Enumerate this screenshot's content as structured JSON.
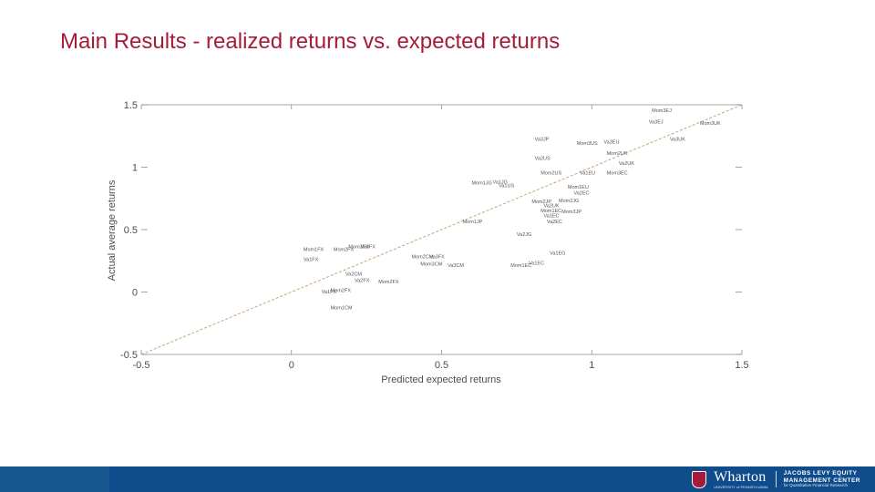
{
  "slide": {
    "title": "Main Results - realized returns vs. expected returns"
  },
  "chart_data": {
    "type": "scatter",
    "title": "",
    "xlabel": "Predicted expected returns",
    "ylabel": "Actual average returns",
    "xlim": [
      -0.5,
      1.5
    ],
    "ylim": [
      -0.5,
      1.5
    ],
    "xticks": [
      -0.5,
      0,
      0.5,
      1,
      1.5
    ],
    "xtick_labels": [
      "-0.5",
      "0",
      "0.5",
      "1",
      "1.5"
    ],
    "yticks": [
      -0.5,
      0,
      0.5,
      1,
      1.5
    ],
    "ytick_labels": [
      "-0.5",
      "0",
      "0.5",
      "1",
      "1.5"
    ],
    "reference_line": {
      "type": "45-degree",
      "style": "dashed",
      "color": "#c8a27c"
    },
    "points": [
      {
        "label": "Mom3EJ",
        "x": 1.2,
        "y": 1.44
      },
      {
        "label": "Va3EJ",
        "x": 1.19,
        "y": 1.35
      },
      {
        "label": "Mom3UK",
        "x": 1.36,
        "y": 1.34
      },
      {
        "label": "Va3JP",
        "x": 0.81,
        "y": 1.21
      },
      {
        "label": "Mom3US",
        "x": 0.95,
        "y": 1.18
      },
      {
        "label": "Va3EU",
        "x": 1.04,
        "y": 1.19
      },
      {
        "label": "Va3UK",
        "x": 1.26,
        "y": 1.21
      },
      {
        "label": "Mom2UK",
        "x": 1.05,
        "y": 1.1
      },
      {
        "label": "Va2US",
        "x": 0.81,
        "y": 1.06
      },
      {
        "label": "Va2UK",
        "x": 1.09,
        "y": 1.02
      },
      {
        "label": "Mom2US",
        "x": 0.83,
        "y": 0.94
      },
      {
        "label": "Va1EU",
        "x": 0.96,
        "y": 0.94
      },
      {
        "label": "Mom3EC",
        "x": 1.05,
        "y": 0.94
      },
      {
        "label": "Mom1JG",
        "x": 0.6,
        "y": 0.86
      },
      {
        "label": "Va1JG",
        "x": 0.67,
        "y": 0.87
      },
      {
        "label": "Va1US",
        "x": 0.69,
        "y": 0.84
      },
      {
        "label": "Mom1EU",
        "x": 0.92,
        "y": 0.83
      },
      {
        "label": "Va2EC",
        "x": 0.94,
        "y": 0.78
      },
      {
        "label": "Mom2JG",
        "x": 0.89,
        "y": 0.72
      },
      {
        "label": "Mom2JP",
        "x": 0.8,
        "y": 0.71
      },
      {
        "label": "Va2UK",
        "x": 0.84,
        "y": 0.68
      },
      {
        "label": "Mom1EC",
        "x": 0.83,
        "y": 0.64
      },
      {
        "label": "Mom3JP",
        "x": 0.9,
        "y": 0.63
      },
      {
        "label": "Va1EC",
        "x": 0.84,
        "y": 0.6
      },
      {
        "label": "Mom1JP",
        "x": 0.57,
        "y": 0.55
      },
      {
        "label": "Va2EC",
        "x": 0.85,
        "y": 0.55
      },
      {
        "label": "Va2JG",
        "x": 0.75,
        "y": 0.45
      },
      {
        "label": "Mom1FX",
        "x": 0.04,
        "y": 0.33
      },
      {
        "label": "Va1FX",
        "x": 0.04,
        "y": 0.25
      },
      {
        "label": "Mom2FX",
        "x": 0.14,
        "y": 0.33
      },
      {
        "label": "Mom3FX",
        "x": 0.19,
        "y": 0.35
      },
      {
        "label": "Va3FX",
        "x": 0.23,
        "y": 0.35
      },
      {
        "label": "Mom2CM",
        "x": 0.4,
        "y": 0.27
      },
      {
        "label": "Va3FX",
        "x": 0.46,
        "y": 0.27
      },
      {
        "label": "Mom3CM",
        "x": 0.43,
        "y": 0.21
      },
      {
        "label": "Va3CM",
        "x": 0.52,
        "y": 0.2
      },
      {
        "label": "Mom1EC",
        "x": 0.73,
        "y": 0.2
      },
      {
        "label": "Va1EC",
        "x": 0.79,
        "y": 0.22
      },
      {
        "label": "Va1EG",
        "x": 0.86,
        "y": 0.3
      },
      {
        "label": "Va2CM",
        "x": 0.18,
        "y": 0.13
      },
      {
        "label": "Va2FX",
        "x": 0.21,
        "y": 0.08
      },
      {
        "label": "Mom2FX",
        "x": 0.29,
        "y": 0.07
      },
      {
        "label": "Va1FX",
        "x": 0.1,
        "y": -0.01
      },
      {
        "label": "Mom2FX",
        "x": 0.13,
        "y": 0.0
      },
      {
        "label": "Mom1CM",
        "x": 0.13,
        "y": -0.14
      }
    ]
  },
  "footer": {
    "brand": "Wharton",
    "brand_sub": "UNIVERSITY of PENNSYLVANIA",
    "center_line1": "JACOBS LEVY EQUITY",
    "center_line2": "MANAGEMENT CENTER",
    "center_line3": "for Quantitative Financial Research",
    "color": "#0f4c8c"
  }
}
